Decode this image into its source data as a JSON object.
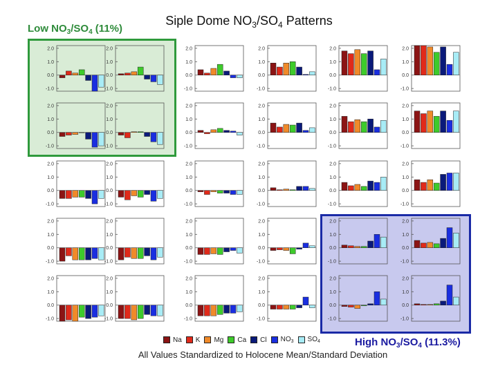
{
  "title": {
    "pre": "Siple Dome NO",
    "sub1": "3",
    "mid": "/SO",
    "sub2": "4",
    "post": " Patterns"
  },
  "low_label": {
    "pre": "Low NO",
    "sub1": "3",
    "mid": "/SO",
    "sub2": "4",
    "post": " (11%)"
  },
  "high_label": {
    "pre": "High NO",
    "sub1": "3",
    "mid": "/SO",
    "sub2": "4",
    "post": " (11.3%)"
  },
  "footnote": "All Values Standardized to Holocene Mean/Standard Deviation",
  "legend": [
    {
      "label": "Na",
      "sub": "",
      "color": "#8b1414"
    },
    {
      "label": "K",
      "sub": "",
      "color": "#e02a1a"
    },
    {
      "label": "Mg",
      "sub": "",
      "color": "#f08a2a"
    },
    {
      "label": "Ca",
      "sub": "",
      "color": "#3ecb2b"
    },
    {
      "label": "Cl",
      "sub": "",
      "color": "#0a1a7a"
    },
    {
      "label": "NO",
      "sub": "3",
      "color": "#1a2ee0"
    },
    {
      "label": "SO",
      "sub": "4",
      "color": "#a8ecf6"
    }
  ],
  "chart_data": {
    "type": "bar",
    "description_rows": 5,
    "description_cols": 6,
    "categories": [
      "Na",
      "K",
      "Mg",
      "Ca",
      "Cl",
      "NO3",
      "SO4"
    ],
    "ylim": [
      -1.2,
      2.2
    ],
    "yticks": [
      2.0,
      1.0,
      0.0,
      -1.0
    ],
    "ytick_labels": [
      "2.0",
      "1.0",
      "0.0",
      "-1.0"
    ],
    "panels": [
      [
        -0.2,
        0.3,
        0.15,
        0.4,
        -0.4,
        -1.2,
        -0.9
      ],
      [
        0.1,
        0.15,
        0.25,
        0.6,
        -0.3,
        -0.5,
        -0.7
      ],
      [
        0.4,
        0.15,
        0.5,
        0.8,
        0.3,
        -0.2,
        -0.2
      ],
      [
        0.9,
        0.6,
        0.9,
        1.0,
        0.6,
        0.05,
        0.25
      ],
      [
        1.8,
        1.6,
        1.9,
        1.6,
        1.8,
        0.4,
        1.2
      ],
      [
        2.2,
        2.2,
        2.1,
        1.7,
        2.1,
        0.8,
        1.7
      ],
      [
        -0.3,
        -0.2,
        -0.15,
        0.0,
        -0.5,
        -1.1,
        -1.0
      ],
      [
        -0.2,
        -0.4,
        0.05,
        0.05,
        -0.3,
        -0.7,
        -0.9
      ],
      [
        0.15,
        -0.1,
        0.2,
        0.3,
        0.15,
        0.1,
        -0.2
      ],
      [
        0.7,
        0.4,
        0.6,
        0.55,
        0.7,
        0.15,
        0.35
      ],
      [
        1.2,
        0.8,
        0.95,
        0.8,
        1.0,
        0.4,
        0.9
      ],
      [
        1.6,
        1.4,
        1.6,
        1.2,
        1.6,
        0.9,
        1.6
      ],
      [
        -0.6,
        -0.6,
        -0.5,
        -0.5,
        -0.6,
        -1.0,
        -0.6
      ],
      [
        -0.5,
        -0.7,
        -0.4,
        -0.5,
        -0.3,
        -0.8,
        -0.6
      ],
      [
        -0.1,
        -0.3,
        -0.1,
        -0.2,
        -0.2,
        -0.3,
        -0.3
      ],
      [
        0.2,
        0.05,
        0.1,
        0.05,
        0.3,
        0.3,
        0.15
      ],
      [
        0.6,
        0.35,
        0.45,
        0.3,
        0.7,
        0.6,
        1.0
      ],
      [
        0.8,
        0.6,
        0.8,
        0.55,
        1.2,
        1.3,
        1.3
      ],
      [
        -1.0,
        -0.6,
        -0.9,
        -0.9,
        -0.9,
        -0.8,
        -0.9
      ],
      [
        -0.9,
        -0.7,
        -0.8,
        -0.8,
        -0.6,
        -0.9,
        -0.7
      ],
      [
        -0.5,
        -0.5,
        -0.45,
        -0.5,
        -0.3,
        -0.2,
        -0.4
      ],
      [
        -0.2,
        -0.15,
        -0.2,
        -0.45,
        -0.1,
        0.35,
        0.15
      ],
      [
        0.2,
        0.15,
        0.1,
        0.1,
        0.5,
        1.0,
        0.8
      ],
      [
        0.55,
        0.35,
        0.4,
        0.3,
        0.7,
        1.5,
        1.1
      ],
      [
        -1.2,
        -1.1,
        -1.2,
        -0.9,
        -1.0,
        -0.9,
        -0.8
      ],
      [
        -1.0,
        -1.0,
        -1.1,
        -1.0,
        -0.7,
        -0.8,
        -0.8
      ],
      [
        -0.8,
        -0.8,
        -0.8,
        -0.7,
        -0.6,
        -0.6,
        -0.5
      ],
      [
        -0.3,
        -0.3,
        -0.3,
        -0.3,
        -0.2,
        0.6,
        -0.2
      ],
      [
        -0.1,
        -0.15,
        -0.25,
        -0.05,
        0.1,
        1.0,
        0.45
      ],
      [
        0.1,
        0.05,
        0.05,
        0.1,
        0.3,
        1.5,
        0.6
      ]
    ]
  }
}
